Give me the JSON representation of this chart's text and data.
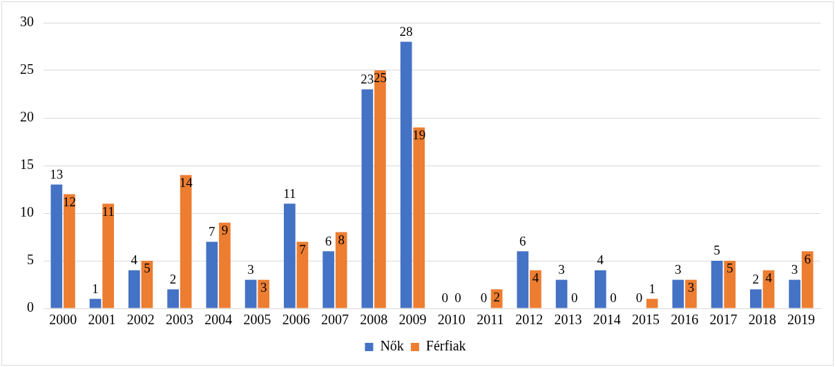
{
  "chart_data": {
    "type": "bar",
    "categories": [
      "2000",
      "2001",
      "2002",
      "2003",
      "2004",
      "2005",
      "2006",
      "2007",
      "2008",
      "2009",
      "2010",
      "2011",
      "2012",
      "2013",
      "2014",
      "2015",
      "2016",
      "2017",
      "2018",
      "2019"
    ],
    "series": [
      {
        "name": "Nők",
        "color": "#4472c4",
        "values": [
          13,
          1,
          4,
          2,
          7,
          3,
          11,
          6,
          23,
          28,
          0,
          0,
          6,
          3,
          4,
          0,
          3,
          5,
          2,
          3
        ]
      },
      {
        "name": "Férfiak",
        "color": "#ed7d31",
        "values": [
          12,
          11,
          5,
          14,
          9,
          3,
          7,
          8,
          25,
          19,
          0,
          2,
          4,
          0,
          0,
          1,
          3,
          5,
          4,
          6
        ]
      }
    ],
    "ylim": [
      0,
      30
    ],
    "yticks": [
      0,
      5,
      10,
      15,
      20,
      25,
      30
    ],
    "grid": "y",
    "legend": "bottom",
    "data_labels": true
  }
}
